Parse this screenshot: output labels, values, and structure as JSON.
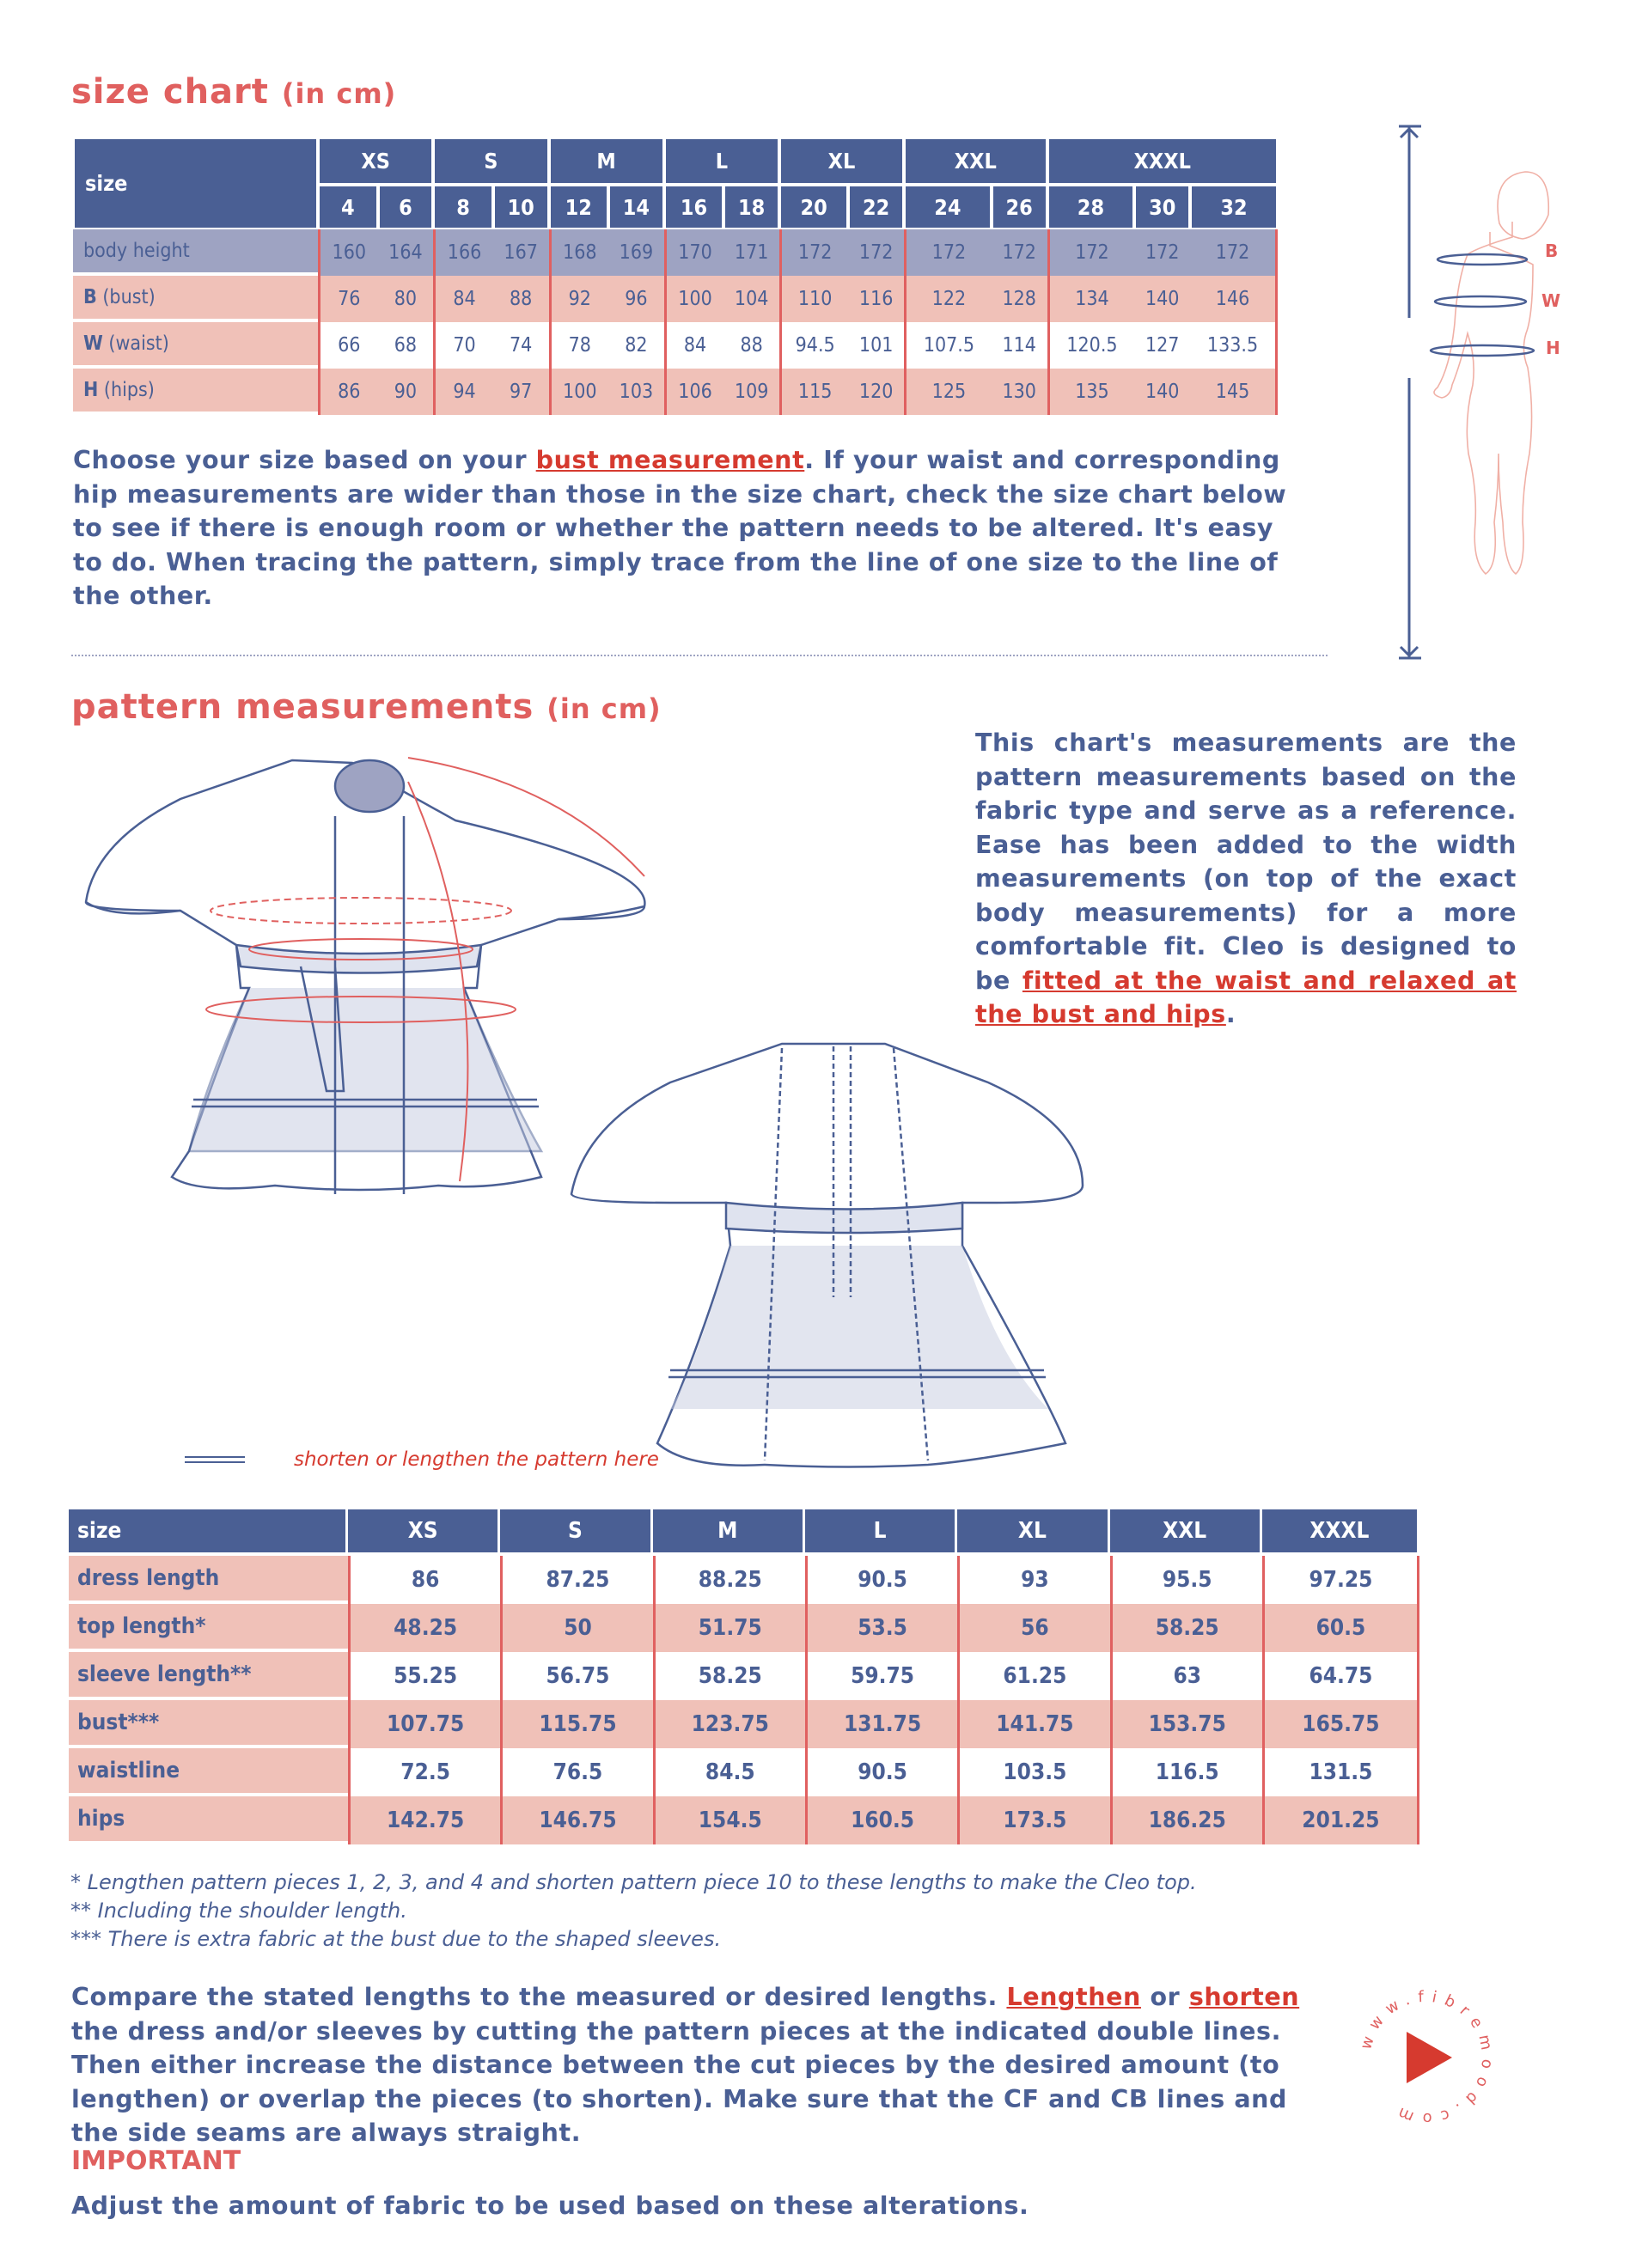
{
  "size_chart": {
    "title": "size chart",
    "unit": "(in cm)",
    "size_label": "size",
    "groups": [
      "XS",
      "S",
      "M",
      "L",
      "XL",
      "XXL",
      "XXXL"
    ],
    "sizes": [
      "4",
      "6",
      "8",
      "10",
      "12",
      "14",
      "16",
      "18",
      "20",
      "22",
      "24",
      "26",
      "28",
      "30",
      "32"
    ],
    "rows": [
      {
        "label": "body height",
        "values": [
          "160",
          "164",
          "166",
          "167",
          "168",
          "169",
          "170",
          "171",
          "172",
          "172",
          "172",
          "172",
          "172",
          "172",
          "172"
        ]
      },
      {
        "label_bold": "B",
        "label": "(bust)",
        "values": [
          "76",
          "80",
          "84",
          "88",
          "92",
          "96",
          "100",
          "104",
          "110",
          "116",
          "122",
          "128",
          "134",
          "140",
          "146"
        ]
      },
      {
        "label_bold": "W",
        "label": "(waist)",
        "values": [
          "66",
          "68",
          "70",
          "74",
          "78",
          "82",
          "84",
          "88",
          "94.5",
          "101",
          "107.5",
          "114",
          "120.5",
          "127",
          "133.5"
        ]
      },
      {
        "label_bold": "H",
        "label": "(hips)",
        "values": [
          "86",
          "90",
          "94",
          "97",
          "100",
          "103",
          "106",
          "109",
          "115",
          "120",
          "125",
          "130",
          "135",
          "140",
          "145"
        ]
      }
    ],
    "text_before": "Choose your size based on your ",
    "link": "bust measurement",
    "text_after": ". If your waist and corresponding hip measurements are wider than those in the size chart, check the size chart below to see if there is enough room or whether the pattern needs to be altered. It's easy to do. When tracing the pattern, simply trace from the line of one size to the line of the other.",
    "figure_labels": {
      "b": "B",
      "w": "W",
      "h": "H"
    }
  },
  "pattern": {
    "title": "pattern measurements",
    "unit": "(in cm)",
    "text_before": "This chart's measurements are the pattern measurements based on the fabric type and serve as a reference. Ease has been added to the width measurements (on top of the exact body measurements) for a more comfortable fit. Cleo is designed to be ",
    "link": "fitted at the waist and relaxed at the bust and hips",
    "text_after": ".",
    "legend": "shorten or lengthen the pattern here",
    "size_label": "size",
    "sizes": [
      "XS",
      "S",
      "M",
      "L",
      "XL",
      "XXL",
      "XXXL"
    ],
    "rows": [
      {
        "label": "dress length",
        "values": [
          "86",
          "87.25",
          "88.25",
          "90.5",
          "93",
          "95.5",
          "97.25"
        ]
      },
      {
        "label": "top length*",
        "values": [
          "48.25",
          "50",
          "51.75",
          "53.5",
          "56",
          "58.25",
          "60.5"
        ]
      },
      {
        "label": "sleeve length**",
        "values": [
          "55.25",
          "56.75",
          "58.25",
          "59.75",
          "61.25",
          "63",
          "64.75"
        ]
      },
      {
        "label": "bust***",
        "values": [
          "107.75",
          "115.75",
          "123.75",
          "131.75",
          "141.75",
          "153.75",
          "165.75"
        ]
      },
      {
        "label": "waistline",
        "values": [
          "72.5",
          "76.5",
          "84.5",
          "90.5",
          "103.5",
          "116.5",
          "131.5"
        ]
      },
      {
        "label": "hips",
        "values": [
          "142.75",
          "146.75",
          "154.5",
          "160.5",
          "173.5",
          "186.25",
          "201.25"
        ]
      }
    ],
    "footnotes": [
      "* Lengthen pattern pieces 1, 2, 3, and 4 and shorten pattern piece 10 to these lengths to make the Cleo top.",
      "** Including the shoulder length.",
      "*** There is extra fabric at the bust due to the shaped sleeves."
    ],
    "compare": {
      "t1": "Compare the stated lengths to the measured or desired lengths. ",
      "l1": "Lengthen",
      "t2": " or ",
      "l2": "shorten",
      "t3": " the dress and/or sleeves by cutting the pattern pieces at the indicated double lines. Then either increase the distance between the cut pieces by the desired amount (to lengthen) or overlap the pieces (to shorten). Make sure that the CF and CB lines and the side seams are always straight."
    },
    "important_title": "IMPORTANT",
    "important_text": "Adjust the amount of fabric to be used based on these alterations."
  },
  "logo": {
    "text": "www.fibremood.com"
  },
  "colors": {
    "blue": "#4a5f94",
    "lavender": "#9ea3c2",
    "pink": "#f0c1b8",
    "title_red": "#e0605f",
    "link_red": "#d63a2f"
  }
}
